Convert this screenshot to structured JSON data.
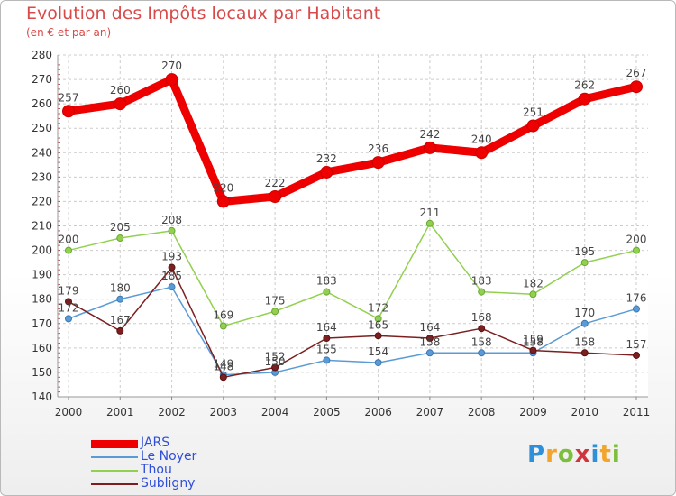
{
  "chart_data": {
    "type": "line",
    "title": "Evolution des Impôts locaux par Habitant",
    "subtitle": "(en € et par an)",
    "x": [
      "2000",
      "2001",
      "2002",
      "2003",
      "2004",
      "2005",
      "2006",
      "2007",
      "2008",
      "2009",
      "2010",
      "2011"
    ],
    "ylim": [
      140,
      280
    ],
    "yticks": [
      "140",
      "150",
      "160",
      "170",
      "180",
      "190",
      "200",
      "210",
      "220",
      "230",
      "240",
      "250",
      "260",
      "270",
      "280"
    ],
    "series": [
      {
        "name": "JARS",
        "color": "#ee0000",
        "values": [
          257,
          260,
          270,
          220,
          222,
          232,
          236,
          242,
          240,
          251,
          262,
          267
        ]
      },
      {
        "name": "Le Noyer",
        "color": "#5b9bd5",
        "values": [
          172,
          180,
          185,
          149,
          150,
          155,
          154,
          158,
          158,
          158,
          170,
          176
        ]
      },
      {
        "name": "Thou",
        "color": "#92d050",
        "values": [
          200,
          205,
          208,
          169,
          175,
          183,
          172,
          211,
          183,
          182,
          195,
          200
        ]
      },
      {
        "name": "Subligny",
        "color": "#7b2020",
        "values": [
          179,
          167,
          193,
          148,
          152,
          164,
          165,
          164,
          168,
          159,
          158,
          157
        ]
      }
    ],
    "legend_position": "bottom-left"
  },
  "logo": {
    "letters": [
      "P",
      "r",
      "o",
      "x",
      "i",
      "t",
      "i"
    ],
    "colors": [
      "#2f8fd8",
      "#f2a52a",
      "#7dbf3c",
      "#d0343c",
      "#2f8fd8",
      "#f2a52a",
      "#7dbf3c"
    ]
  }
}
